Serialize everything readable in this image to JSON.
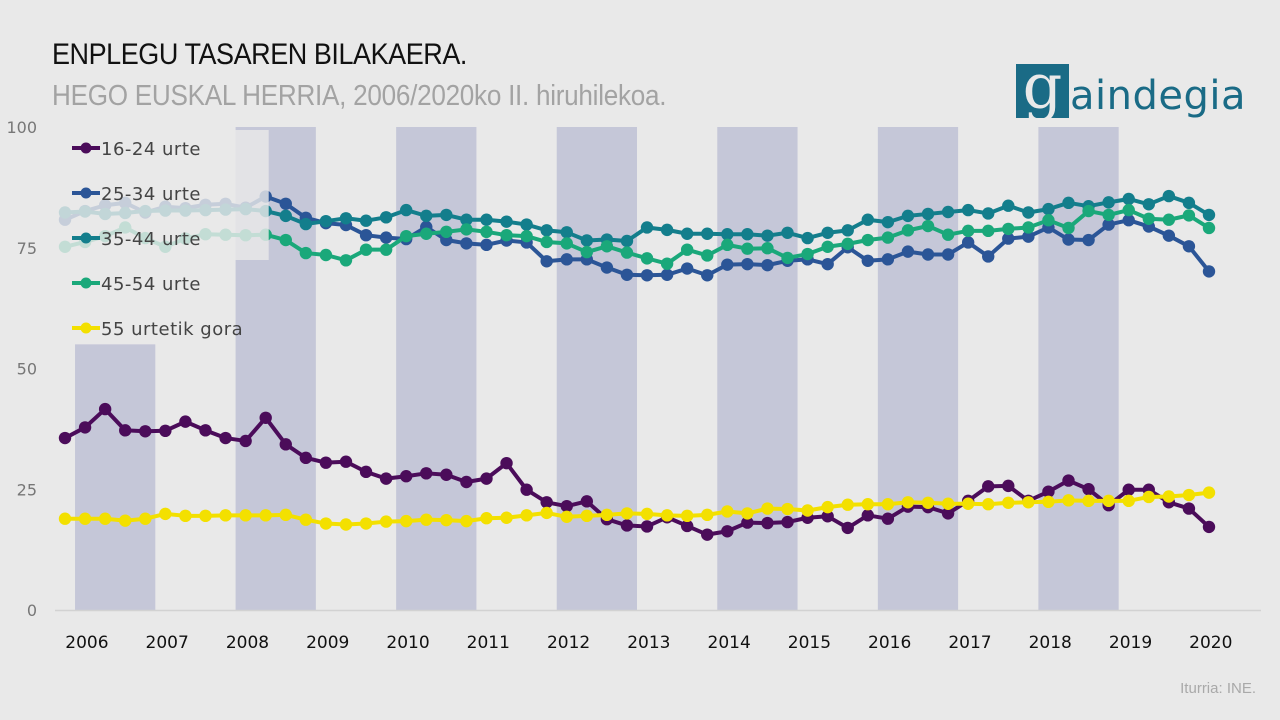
{
  "header": {
    "title": "ENPLEGU TASAREN BILAKAERA.",
    "subtitle": "HEGO EUSKAL HERRIA, 2006/2020ko II. hiruhilekoa.",
    "logo_initial": "g",
    "logo_rest": "aindegia"
  },
  "footer": {
    "source": "Iturria: INE."
  },
  "colors": {
    "background": "#e9e9e9",
    "band": "#c5c7d8",
    "logo": "#1a6b86"
  },
  "chart_data": {
    "type": "line",
    "title": "ENPLEGU TASAREN BILAKAERA.",
    "subtitle": "HEGO EUSKAL HERRIA, 2006/2020ko II. hiruhilekoa.",
    "xlabel": "",
    "ylabel": "",
    "ylim": [
      0,
      100
    ],
    "yticks": [
      0,
      25,
      50,
      75,
      100
    ],
    "xtick_labels": [
      "2006",
      "2007",
      "2008",
      "2009",
      "2010",
      "2011",
      "2012",
      "2013",
      "2014",
      "2015",
      "2016",
      "2017",
      "2018",
      "2019",
      "2020"
    ],
    "x_start": "2006 I",
    "x_end": "2020 II",
    "frequency": "quarterly",
    "faded_until_index": 10,
    "shaded_years": [
      "2007",
      "2009",
      "2011",
      "2013",
      "2015",
      "2017",
      "2019"
    ],
    "legend_position": "top-left",
    "grid": false,
    "series": [
      {
        "name": "16-24 urte",
        "color": "#4b0c5a",
        "values": [
          35.6,
          37.8,
          41.6,
          37.2,
          37.0,
          37.1,
          39.0,
          37.2,
          35.6,
          35.0,
          39.8,
          34.3,
          31.5,
          30.5,
          30.7,
          28.6,
          27.2,
          27.7,
          28.3,
          28.0,
          26.5,
          27.2,
          30.4,
          24.9,
          22.3,
          21.5,
          22.5,
          18.8,
          17.5,
          17.3,
          19.2,
          17.4,
          15.6,
          16.3,
          18.1,
          18.0,
          18.2,
          19.1,
          19.4,
          17.0,
          19.6,
          18.9,
          21.4,
          21.3,
          20.0,
          22.6,
          25.6,
          25.7,
          22.6,
          24.5,
          26.8,
          25.0,
          21.7,
          24.9,
          24.9,
          22.3,
          21.0,
          17.2
        ]
      },
      {
        "name": "25-34 urte",
        "color": "#2b5597",
        "values": [
          80.8,
          82.6,
          83.8,
          84.3,
          82.3,
          83.5,
          83.2,
          83.9,
          84.1,
          83.3,
          85.6,
          84.1,
          81.2,
          80.1,
          79.7,
          77.6,
          77.1,
          76.8,
          79.3,
          76.6,
          75.9,
          75.6,
          76.5,
          76.1,
          72.2,
          72.6,
          72.6,
          70.9,
          69.4,
          69.3,
          69.4,
          70.7,
          69.3,
          71.5,
          71.6,
          71.4,
          72.3,
          72.6,
          71.6,
          75.1,
          72.3,
          72.6,
          74.2,
          73.6,
          73.6,
          76.1,
          73.2,
          76.9,
          77.3,
          79.2,
          76.7,
          76.6,
          79.8,
          80.7,
          79.4,
          77.5,
          75.3,
          70.1
        ]
      },
      {
        "name": "35-44 urte",
        "color": "#137e8c",
        "values": [
          82.3,
          82.5,
          82.0,
          82.2,
          82.6,
          82.7,
          82.7,
          82.8,
          82.9,
          83.0,
          82.6,
          81.6,
          79.9,
          80.5,
          81.1,
          80.6,
          81.3,
          82.8,
          81.6,
          81.8,
          80.8,
          80.8,
          80.4,
          79.8,
          78.6,
          78.2,
          76.5,
          76.7,
          76.4,
          79.2,
          78.7,
          77.9,
          77.9,
          77.8,
          77.8,
          77.5,
          78.1,
          77.0,
          78.1,
          78.6,
          80.8,
          80.3,
          81.6,
          82.0,
          82.4,
          82.8,
          82.1,
          83.7,
          82.3,
          83.0,
          84.3,
          83.6,
          84.4,
          85.1,
          84.0,
          85.7,
          84.3,
          81.8
        ]
      },
      {
        "name": "45-54 urte",
        "color": "#1aa87a",
        "values": [
          75.2,
          76.2,
          77.4,
          79.2,
          77.0,
          75.2,
          76.9,
          77.8,
          77.7,
          77.6,
          77.7,
          76.6,
          73.9,
          73.5,
          72.4,
          74.6,
          74.6,
          77.4,
          77.9,
          78.3,
          78.8,
          78.3,
          77.6,
          77.4,
          76.2,
          75.9,
          74.1,
          75.3,
          74.0,
          72.8,
          71.7,
          74.6,
          73.4,
          75.6,
          74.8,
          74.9,
          72.9,
          73.7,
          75.2,
          75.8,
          76.6,
          77.1,
          78.6,
          79.5,
          77.7,
          78.5,
          78.5,
          78.9,
          79.2,
          80.7,
          79.1,
          82.6,
          81.8,
          82.8,
          81.0,
          80.8,
          81.7,
          79.1
        ]
      },
      {
        "name": "55 urtetik gora",
        "color": "#f3e000",
        "values": [
          18.9,
          18.9,
          18.9,
          18.5,
          18.9,
          19.9,
          19.5,
          19.5,
          19.6,
          19.6,
          19.6,
          19.7,
          18.7,
          17.9,
          17.7,
          17.9,
          18.3,
          18.4,
          18.7,
          18.6,
          18.4,
          19.0,
          19.1,
          19.6,
          20.1,
          19.3,
          19.5,
          19.7,
          20.0,
          19.9,
          19.6,
          19.5,
          19.7,
          20.4,
          20.0,
          21.0,
          20.9,
          20.6,
          21.3,
          21.8,
          21.9,
          21.9,
          22.3,
          22.2,
          22.0,
          22.0,
          21.9,
          22.2,
          22.3,
          22.4,
          22.7,
          22.6,
          22.6,
          22.6,
          23.4,
          23.5,
          23.8,
          24.3
        ]
      }
    ]
  }
}
